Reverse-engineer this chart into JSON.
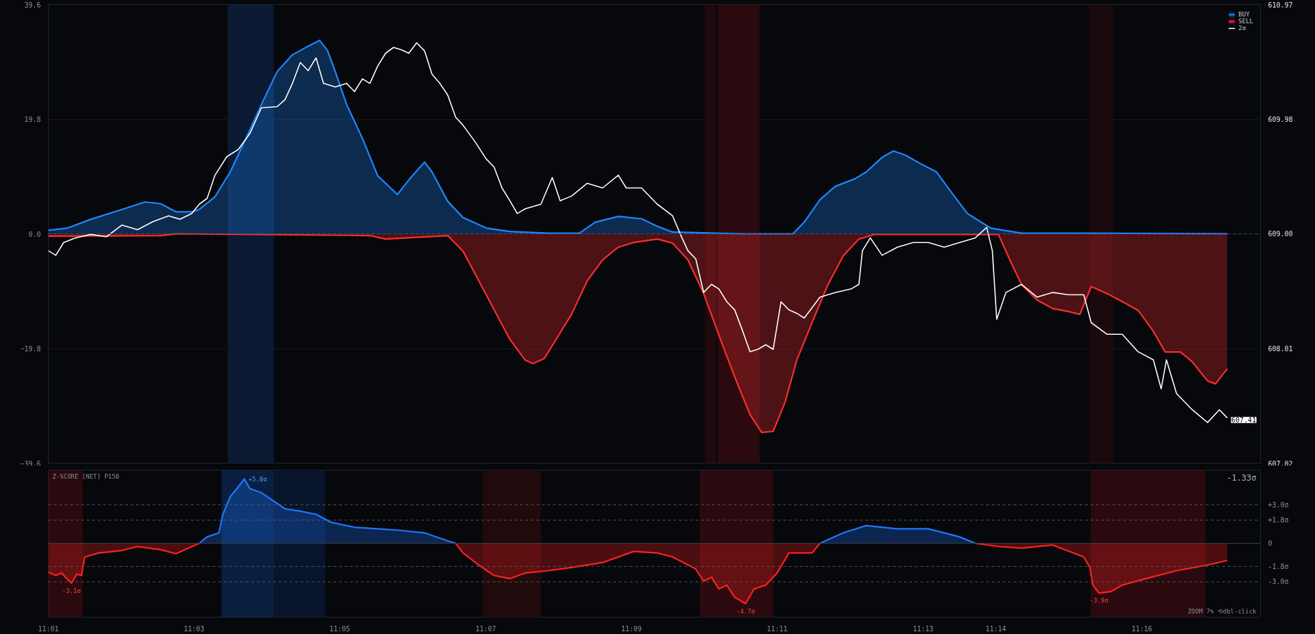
{
  "chart_data": [
    {
      "type": "area",
      "xlim": [
        11.0167,
        11.2938
      ],
      "ylim": [
        -39.6,
        39.6
      ],
      "yticks": [
        -39.6,
        -19.8,
        {
          "value": 0,
          "label": "0.0"
        },
        19.8,
        39.6
      ],
      "y2lim": [
        607.02,
        610.97
      ],
      "y2ticks": [
        607.02,
        608.01,
        {
          "value": 609,
          "label": "609.00"
        },
        609.98,
        610.97
      ],
      "tick_labels": "y",
      "grid": "y",
      "legend": "top right",
      "bands": [
        {
          "axis": "x",
          "from": 11.0577,
          "to": 11.0683,
          "color": "#0a1a33"
        },
        {
          "axis": "x",
          "from": 11.1668,
          "to": 11.1693,
          "color": "#1e0a0e"
        },
        {
          "axis": "x",
          "from": 11.1697,
          "to": 11.1793,
          "color": "#2a0a0e"
        },
        {
          "axis": "x",
          "from": 11.2546,
          "to": 11.2601,
          "color": "#1a0a0e"
        }
      ],
      "ref_lines": [
        {
          "axis": "y",
          "value": 0,
          "color": "#2a5a9a",
          "line_style": "dashed"
        }
      ],
      "annotations": [
        "607.41"
      ],
      "series": [
        {
          "name": "BUY",
          "color": "#1e88ff",
          "x": [
            11.0167,
            11.0211,
            11.0264,
            11.0335,
            11.0388,
            11.0424,
            11.0459,
            11.0495,
            11.0512,
            11.0548,
            11.0583,
            11.0619,
            11.0654,
            11.069,
            11.0725,
            11.0761,
            11.0787,
            11.0805,
            11.0823,
            11.0849,
            11.0885,
            11.092,
            11.0965,
            11.0991,
            11.1027,
            11.1044,
            11.108,
            11.1115,
            11.1168,
            11.1222,
            11.131,
            11.1381,
            11.1417,
            11.147,
            11.1523,
            11.1559,
            11.1594,
            11.1754,
            11.1869,
            11.1895,
            11.1931,
            11.1966,
            11.2011,
            11.2037,
            11.2073,
            11.2099,
            11.2126,
            11.2161,
            11.2197,
            11.2232,
            11.2268,
            11.2321,
            11.2392,
            11.2534,
            11.2862
          ],
          "values": [
            0.6,
            1.0,
            2.5,
            4.2,
            5.5,
            5.2,
            3.8,
            3.8,
            4.2,
            6.4,
            10.7,
            16.5,
            22.3,
            28.0,
            30.9,
            32.4,
            33.4,
            31.7,
            28.0,
            22.3,
            16.5,
            10.0,
            6.8,
            9.3,
            12.4,
            10.7,
            5.6,
            2.8,
            1.0,
            0.4,
            0.1,
            0.1,
            2.0,
            3.0,
            2.6,
            1.3,
            0.3,
            0,
            0,
            2.0,
            5.9,
            8.2,
            9.5,
            10.7,
            13.2,
            14.3,
            13.6,
            12.1,
            10.7,
            7.1,
            3.5,
            1.0,
            0.1,
            0.1,
            0
          ]
        },
        {
          "name": "SELL",
          "color": "#ff2d2d",
          "x": [
            11.0167,
            11.0424,
            11.0459,
            11.0902,
            11.0938,
            11.108,
            11.1115,
            11.1151,
            11.1186,
            11.1222,
            11.1257,
            11.1275,
            11.1301,
            11.1328,
            11.1363,
            11.1399,
            11.1434,
            11.147,
            11.1505,
            11.1559,
            11.1594,
            11.1629,
            11.1665,
            11.17,
            11.1736,
            11.1771,
            11.1798,
            11.1824,
            11.1851,
            11.1878,
            11.1913,
            11.1949,
            11.1984,
            11.202,
            11.2055,
            11.2339,
            11.2365,
            11.2392,
            11.2427,
            11.2463,
            11.2498,
            11.2525,
            11.2551,
            11.2587,
            11.2622,
            11.2658,
            11.2693,
            11.272,
            11.2755,
            11.2782,
            11.2817,
            11.2835,
            11.2862
          ],
          "values": [
            -0.4,
            -0.3,
            0,
            -0.3,
            -0.9,
            -0.3,
            -3.0,
            -8.1,
            -13.1,
            -18.2,
            -21.8,
            -22.4,
            -21.5,
            -18.2,
            -13.9,
            -8.1,
            -4.5,
            -2.3,
            -1.5,
            -0.9,
            -1.6,
            -4.5,
            -10.3,
            -17.5,
            -24.7,
            -31.2,
            -34.3,
            -34.1,
            -29.1,
            -21.8,
            -15.3,
            -8.8,
            -3.8,
            -0.9,
            -0.1,
            -0.1,
            -4.5,
            -8.8,
            -11.4,
            -12.9,
            -13.4,
            -13.9,
            -9.1,
            -10.3,
            -11.7,
            -13.2,
            -16.8,
            -20.4,
            -20.4,
            -22.1,
            -25.4,
            -25.9,
            -23.3
          ]
        },
        {
          "name": "2σ",
          "type": "line",
          "axis": "y2",
          "color": "#ffffff",
          "x": [
            11.0167,
            11.0184,
            11.0202,
            11.0229,
            11.0264,
            11.03,
            11.0335,
            11.0371,
            11.0406,
            11.0442,
            11.0468,
            11.0495,
            11.0512,
            11.053,
            11.0548,
            11.0575,
            11.0601,
            11.0628,
            11.0654,
            11.069,
            11.0708,
            11.0725,
            11.0743,
            11.0761,
            11.0779,
            11.0796,
            11.0823,
            11.0849,
            11.0867,
            11.0885,
            11.0902,
            11.092,
            11.0938,
            11.0956,
            11.0974,
            11.0991,
            11.1009,
            11.1027,
            11.1044,
            11.1062,
            11.108,
            11.1098,
            11.1115,
            11.1142,
            11.1168,
            11.1186,
            11.1204,
            11.1222,
            11.1239,
            11.1257,
            11.1293,
            11.1319,
            11.1337,
            11.1363,
            11.1399,
            11.1434,
            11.147,
            11.1488,
            11.1523,
            11.1559,
            11.1594,
            11.1612,
            11.1629,
            11.1647,
            11.1665,
            11.1683,
            11.17,
            11.1718,
            11.1736,
            11.1754,
            11.1771,
            11.1789,
            11.1807,
            11.1824,
            11.1842,
            11.186,
            11.1878,
            11.1895,
            11.1931,
            11.1966,
            11.2002,
            11.202,
            11.2028,
            11.2046,
            11.2073,
            11.2108,
            11.2144,
            11.2179,
            11.2215,
            11.225,
            11.2286,
            11.2312,
            11.2325,
            11.2335,
            11.2356,
            11.2392,
            11.2427,
            11.2463,
            11.2498,
            11.2534,
            11.2551,
            11.2587,
            11.2622,
            11.2658,
            11.2693,
            11.2711,
            11.2723,
            11.2746,
            11.2782,
            11.2817,
            11.2844,
            11.2862
          ],
          "values": [
            608.85,
            608.81,
            608.92,
            608.96,
            608.99,
            608.97,
            609.07,
            609.03,
            609.1,
            609.15,
            609.12,
            609.17,
            609.25,
            609.3,
            609.5,
            609.66,
            609.72,
            609.86,
            610.08,
            610.09,
            610.15,
            610.29,
            610.47,
            610.4,
            610.51,
            610.29,
            610.26,
            610.29,
            610.22,
            610.33,
            610.29,
            610.44,
            610.55,
            610.6,
            610.58,
            610.55,
            610.64,
            610.57,
            610.37,
            610.29,
            610.19,
            610.0,
            609.93,
            609.79,
            609.64,
            609.57,
            609.39,
            609.28,
            609.17,
            609.21,
            609.25,
            609.48,
            609.28,
            609.32,
            609.43,
            609.39,
            609.5,
            609.39,
            609.39,
            609.25,
            609.15,
            608.99,
            608.85,
            608.78,
            608.49,
            608.56,
            608.52,
            608.41,
            608.34,
            608.16,
            607.98,
            608.0,
            608.04,
            608.0,
            608.41,
            608.34,
            608.31,
            608.27,
            608.45,
            608.49,
            608.52,
            608.56,
            608.85,
            608.96,
            608.81,
            608.88,
            608.92,
            608.92,
            608.88,
            608.92,
            608.96,
            609.05,
            608.85,
            608.26,
            608.49,
            608.56,
            608.45,
            608.49,
            608.47,
            608.47,
            608.23,
            608.13,
            608.13,
            607.98,
            607.91,
            607.66,
            607.91,
            607.62,
            607.48,
            607.37,
            607.48,
            607.41
          ]
        }
      ]
    },
    {
      "type": "area",
      "xlim": [
        11.0167,
        11.2938
      ],
      "ylim": [
        -5.75,
        5.7
      ],
      "yticks": [
        {
          "value": -3,
          "label": "-3.0σ"
        },
        {
          "value": -1.8,
          "label": "-1.8σ"
        },
        0,
        {
          "value": 1.8,
          "label": "+1.8σ"
        },
        {
          "value": 3,
          "label": "+3.0σ"
        }
      ],
      "xticks": [
        {
          "value": 11.0167,
          "label": "11:01"
        },
        {
          "value": 11.05,
          "label": "11:03"
        },
        {
          "value": 11.0833,
          "label": "11:05"
        },
        {
          "value": 11.1167,
          "label": "11:07"
        },
        {
          "value": 11.15,
          "label": "11:09"
        },
        {
          "value": 11.1833,
          "label": "11:11"
        },
        {
          "value": 11.2167,
          "label": "11:13"
        },
        {
          "value": 11.2333,
          "label": "11:14"
        },
        {
          "value": 11.2667,
          "label": "11:16"
        }
      ],
      "bands": [
        {
          "axis": "x",
          "from": 11.0167,
          "to": 11.0246,
          "color": "#2a0a0e"
        },
        {
          "axis": "x",
          "from": 11.0563,
          "to": 11.0683,
          "color": "#0a1f40"
        },
        {
          "axis": "x",
          "from": 11.0683,
          "to": 11.08,
          "color": "#07142a"
        },
        {
          "axis": "x",
          "from": 11.116,
          "to": 11.1293,
          "color": "#200a0c"
        },
        {
          "axis": "x",
          "from": 11.1656,
          "to": 11.1824,
          "color": "#2a0a0e"
        },
        {
          "axis": "x",
          "from": 11.255,
          "to": 11.2812,
          "color": "#2a0a0e"
        }
      ],
      "ref_lines": [
        {
          "axis": "y",
          "value": 3,
          "color": "#555a63",
          "line_style": "dashed"
        },
        {
          "axis": "y",
          "value": 1.8,
          "color": "#555a63",
          "line_style": "dashed"
        },
        {
          "axis": "y",
          "value": 0,
          "color": "#3a3e46",
          "line_style": "solid"
        },
        {
          "axis": "y",
          "value": -1.8,
          "color": "#555a63",
          "line_style": "dashed"
        },
        {
          "axis": "y",
          "value": -3,
          "color": "#555a63",
          "line_style": "dashed"
        }
      ],
      "annotations": [
        "Z-SCORE [NET] P150",
        "-1.33σ",
        "ZOOM 7% ⟲dbl-click",
        {
          "text": "-3.1σ",
          "x": 11.022,
          "y": -3.1
        },
        {
          "text": "+5.0σ",
          "x": 11.0615,
          "y": 5.0
        },
        {
          "text": "-4.7σ",
          "x": 11.1761,
          "y": -4.7
        },
        {
          "text": "-3.9σ",
          "x": 11.2569,
          "y": -3.88
        }
      ],
      "series": [
        {
          "color": "#ff2020",
          "x": [
            11.0167,
            11.0184,
            11.0197,
            11.0208,
            11.022,
            11.0232,
            11.0243,
            11.025,
            11.0282,
            11.0335,
            11.0371,
            11.0424,
            11.0459,
            11.0495,
            11.0512
          ],
          "values": [
            -2.25,
            -2.5,
            -2.3,
            -2.7,
            -3.1,
            -2.4,
            -2.5,
            -1.06,
            -0.75,
            -0.56,
            -0.25,
            -0.5,
            -0.81,
            -0.25,
            0
          ]
        },
        {
          "color": "#1e78ff",
          "x": [
            11.0512,
            11.053,
            11.0557,
            11.0566,
            11.0583,
            11.0601,
            11.0615,
            11.0628,
            11.0654,
            11.0681,
            11.0708,
            11.0743,
            11.0779,
            11.0814,
            11.0867,
            11.092,
            11.0974,
            11.1027,
            11.108,
            11.1098
          ],
          "values": [
            0,
            0.5,
            0.81,
            2.25,
            3.63,
            4.38,
            5.0,
            4.25,
            3.94,
            3.31,
            2.69,
            2.5,
            2.25,
            1.63,
            1.25,
            1.13,
            1.0,
            0.81,
            0.19,
            0
          ]
        },
        {
          "color": "#ff2020",
          "x": [
            11.1098,
            11.1115,
            11.1151,
            11.1186,
            11.1222,
            11.1257,
            11.131,
            11.1363,
            11.1434,
            11.1505,
            11.1559,
            11.1594,
            11.1647,
            11.1665,
            11.1683,
            11.17,
            11.1718,
            11.1736,
            11.1761,
            11.178,
            11.1807,
            11.1833,
            11.186,
            11.1913,
            11.1931
          ],
          "values": [
            0,
            -0.75,
            -1.69,
            -2.5,
            -2.75,
            -2.31,
            -2.13,
            -1.88,
            -1.5,
            -0.63,
            -0.75,
            -1.06,
            -2.0,
            -2.94,
            -2.63,
            -3.56,
            -3.25,
            -4.19,
            -4.7,
            -3.56,
            -3.25,
            -2.31,
            -0.75,
            -0.75,
            0
          ]
        },
        {
          "color": "#1e78ff",
          "x": [
            11.1931,
            11.1984,
            11.2037,
            11.2108,
            11.2179,
            11.225,
            11.2286
          ],
          "values": [
            0,
            0.81,
            1.38,
            1.13,
            1.13,
            0.5,
            0
          ]
        },
        {
          "color": "#ff2020",
          "x": [
            11.2286,
            11.2339,
            11.2392,
            11.2463,
            11.2534,
            11.2548,
            11.2555,
            11.2569,
            11.2596,
            11.2622,
            11.2676,
            11.2746,
            11.2817,
            11.2862
          ],
          "values": [
            0,
            -0.25,
            -0.38,
            -0.13,
            -1.06,
            -1.88,
            -3.25,
            -3.88,
            -3.75,
            -3.25,
            -2.75,
            -2.13,
            -1.69,
            -1.33
          ]
        }
      ]
    }
  ]
}
